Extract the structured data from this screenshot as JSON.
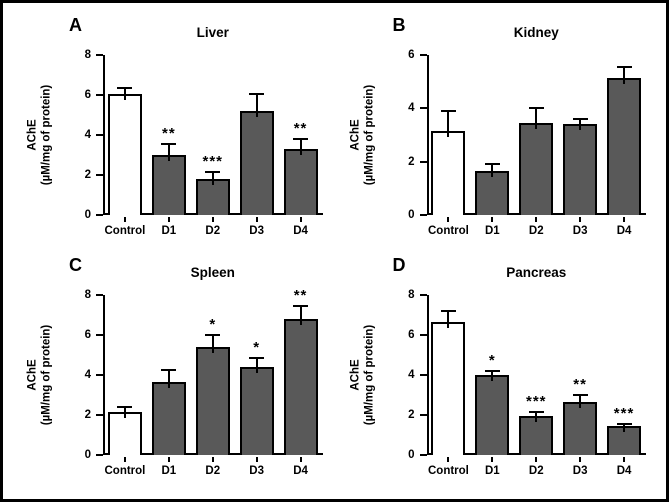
{
  "figure": {
    "background": "#ffffff",
    "border_color": "#000000",
    "axis_color": "#000000",
    "control_bar_fill": "#ffffff",
    "dose_bar_fill": "#595959"
  },
  "chart_data": [
    {
      "type": "bar",
      "panel": "A",
      "title": "Liver",
      "ylabel_lines": [
        "AChE",
        "(µM/mg of protein)"
      ],
      "xlabel": "",
      "categories": [
        "Control",
        "D1",
        "D2",
        "D3",
        "D4"
      ],
      "values": [
        6.05,
        3.0,
        1.8,
        5.2,
        3.3
      ],
      "errors": [
        0.3,
        0.55,
        0.35,
        0.85,
        0.5
      ],
      "significance": [
        "",
        "**",
        "***",
        "",
        "**"
      ],
      "bar_colors": [
        "#ffffff",
        "#595959",
        "#595959",
        "#595959",
        "#595959"
      ],
      "ylim": [
        0,
        8
      ],
      "yticks": [
        0,
        2,
        4,
        6,
        8
      ],
      "grid": false,
      "legend": "none"
    },
    {
      "type": "bar",
      "panel": "B",
      "title": "Kidney",
      "ylabel_lines": [
        "AChE",
        "(µM/mg of protein)"
      ],
      "xlabel": "",
      "categories": [
        "Control",
        "D1",
        "D2",
        "D3",
        "D4"
      ],
      "values": [
        3.15,
        1.65,
        3.45,
        3.4,
        5.15
      ],
      "errors": [
        0.75,
        0.25,
        0.55,
        0.2,
        0.4
      ],
      "significance": [
        "",
        "",
        "",
        "",
        ""
      ],
      "bar_colors": [
        "#ffffff",
        "#595959",
        "#595959",
        "#595959",
        "#595959"
      ],
      "ylim": [
        0,
        6
      ],
      "yticks": [
        0,
        2,
        4,
        6
      ],
      "grid": false,
      "legend": "none"
    },
    {
      "type": "bar",
      "panel": "C",
      "title": "Spleen",
      "ylabel_lines": [
        "AChE",
        "(µM/mg of protein)"
      ],
      "xlabel": "",
      "categories": [
        "Control",
        "D1",
        "D2",
        "D3",
        "D4"
      ],
      "values": [
        2.15,
        3.65,
        5.4,
        4.4,
        6.8
      ],
      "errors": [
        0.25,
        0.6,
        0.6,
        0.45,
        0.65
      ],
      "significance": [
        "",
        "",
        "*",
        "*",
        "**"
      ],
      "bar_colors": [
        "#ffffff",
        "#595959",
        "#595959",
        "#595959",
        "#595959"
      ],
      "ylim": [
        0,
        8
      ],
      "yticks": [
        0,
        2,
        4,
        6,
        8
      ],
      "grid": false,
      "legend": "none"
    },
    {
      "type": "bar",
      "panel": "D",
      "title": "Pancreas",
      "ylabel_lines": [
        "AChE",
        "(µM/mg of protein)"
      ],
      "xlabel": "",
      "categories": [
        "Control",
        "D1",
        "D2",
        "D3",
        "D4"
      ],
      "values": [
        6.65,
        4.0,
        1.95,
        2.65,
        1.45
      ],
      "errors": [
        0.55,
        0.2,
        0.2,
        0.35,
        0.1
      ],
      "significance": [
        "",
        "*",
        "***",
        "**",
        "***"
      ],
      "bar_colors": [
        "#ffffff",
        "#595959",
        "#595959",
        "#595959",
        "#595959"
      ],
      "ylim": [
        0,
        8
      ],
      "yticks": [
        0,
        2,
        4,
        6,
        8
      ],
      "grid": false,
      "legend": "none"
    }
  ]
}
